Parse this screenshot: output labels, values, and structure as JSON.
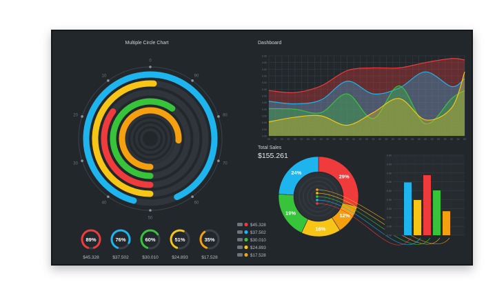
{
  "colors": {
    "bg": "#22272c",
    "red": "#ef3b3b",
    "blue": "#1eb4ee",
    "yellow": "#f7c516",
    "green": "#38c43a",
    "orange": "#f5a00f",
    "track": "#2f353b",
    "grid": "#3a4148"
  },
  "circle_chart": {
    "title": "Multiple Circle Chart",
    "ticks": [
      {
        "label": "0",
        "angle": 0
      },
      {
        "label": "90",
        "angle": 36
      },
      {
        "label": "80",
        "angle": 72
      },
      {
        "label": "70",
        "angle": 108
      },
      {
        "label": "60",
        "angle": 144
      },
      {
        "label": "50",
        "angle": 180
      },
      {
        "label": "40",
        "angle": 216
      },
      {
        "label": "30",
        "angle": 252
      },
      {
        "label": "20",
        "angle": 288
      },
      {
        "label": "10",
        "angle": 324
      }
    ]
  },
  "dashboard": {
    "title": "Dashboard"
  },
  "total_sales": {
    "label": "Total Sales",
    "value": "$155.261"
  },
  "chart_data": [
    {
      "type": "multi-ring",
      "title": "Multiple Circle Chart",
      "series": [
        {
          "value": 89,
          "color": "#1eb4ee"
        },
        {
          "value": 51,
          "color": "#f7c516"
        },
        {
          "value": 35,
          "color": "#ef3b3b"
        },
        {
          "value": 60,
          "color": "#38c43a"
        },
        {
          "value": 76,
          "color": "#f5a00f"
        }
      ]
    },
    {
      "type": "area",
      "title": "Dashboard",
      "x": [
        0,
        1,
        2,
        3,
        4,
        5,
        6,
        7,
        8,
        9,
        10,
        11,
        12,
        13,
        14,
        15,
        16,
        17,
        18,
        19,
        20,
        21,
        22,
        23,
        24,
        25,
        26,
        27,
        28,
        29,
        30
      ],
      "ylim": [
        0,
        12
      ],
      "ytick_labels": [
        "0.00",
        "0.00",
        "0.00",
        "0.00",
        "0.00",
        "0.00",
        "0.00",
        "0.00",
        "0.00",
        "0.00",
        "0.00",
        "0.00",
        "0.00"
      ],
      "xtick_labels": [
        "00",
        "00",
        "00",
        "00",
        "00",
        "00",
        "00",
        "00",
        "00",
        "00",
        "00",
        "00",
        "00",
        "00",
        "00",
        "00",
        "00",
        "00",
        "00",
        "00",
        "00",
        "00",
        "00",
        "00",
        "00",
        "00",
        "00",
        "00",
        "00",
        "00",
        "00"
      ],
      "grid": true,
      "series": [
        {
          "color": "#ef3b3b",
          "x": [
            0,
            4,
            8,
            12,
            16,
            20,
            24,
            28,
            30
          ],
          "values": [
            6.8,
            6.5,
            7.5,
            9.8,
            10.2,
            10.2,
            11.0,
            11.6,
            11.4
          ]
        },
        {
          "color": "#1eb4ee",
          "x": [
            0,
            4,
            8,
            12,
            16,
            20,
            24,
            28,
            30
          ],
          "values": [
            5.2,
            4.8,
            5.4,
            8.2,
            6.3,
            7.2,
            9.6,
            7.4,
            8.6
          ]
        },
        {
          "color": "#38c43a",
          "x": [
            0,
            4,
            8,
            12,
            16,
            20,
            24,
            28,
            30
          ],
          "values": [
            4.1,
            4.0,
            3.5,
            6.3,
            2.6,
            7.5,
            1.8,
            5.6,
            6.8
          ]
        },
        {
          "color": "#f7c516",
          "x": [
            0,
            4,
            8,
            12,
            16,
            20,
            24,
            28,
            30
          ],
          "values": [
            2.1,
            2.8,
            3.0,
            1.6,
            3.5,
            5.6,
            2.4,
            4.2,
            9.6
          ]
        }
      ]
    },
    {
      "type": "pie",
      "categories": [
        "29%",
        "12%",
        "16%",
        "19%",
        "24%"
      ],
      "values": [
        29,
        12,
        16,
        19,
        24
      ],
      "colors": [
        "#ef3b3b",
        "#f5a00f",
        "#f7c516",
        "#38c43a",
        "#1eb4ee"
      ]
    },
    {
      "type": "bar",
      "categories": [
        "blue",
        "yellow",
        "red",
        "green",
        "orange"
      ],
      "values": [
        0.66,
        0.44,
        0.75,
        0.56,
        0.3
      ],
      "colors": [
        "#1eb4ee",
        "#f7c516",
        "#ef3b3b",
        "#38c43a",
        "#f5a00f"
      ],
      "ylim": [
        0,
        1
      ],
      "ytick_labels": [
        "0.00",
        "0.00",
        "0.00",
        "0.00",
        "0.00",
        "0.00",
        "0.00",
        "0.00",
        "0.00",
        "0.00"
      ]
    }
  ],
  "gauges": [
    {
      "percent": 89,
      "label": "89%",
      "value": "$45.328",
      "color": "#ef3b3b"
    },
    {
      "percent": 76,
      "label": "76%",
      "value": "$37.502",
      "color": "#1eb4ee"
    },
    {
      "percent": 60,
      "label": "60%",
      "value": "$30.010",
      "color": "#38c43a"
    },
    {
      "percent": 51,
      "label": "51%",
      "value": "$24.893",
      "color": "#f7c516"
    },
    {
      "percent": 35,
      "label": "35%",
      "value": "$17.528",
      "color": "#f5a00f"
    }
  ],
  "legend": [
    {
      "value": "$45.328",
      "color": "#ef3b3b"
    },
    {
      "value": "$37.502",
      "color": "#1eb4ee"
    },
    {
      "value": "$30.010",
      "color": "#38c43a"
    },
    {
      "value": "$24.893",
      "color": "#f7c516"
    },
    {
      "value": "$17.528",
      "color": "#f5a00f"
    }
  ]
}
